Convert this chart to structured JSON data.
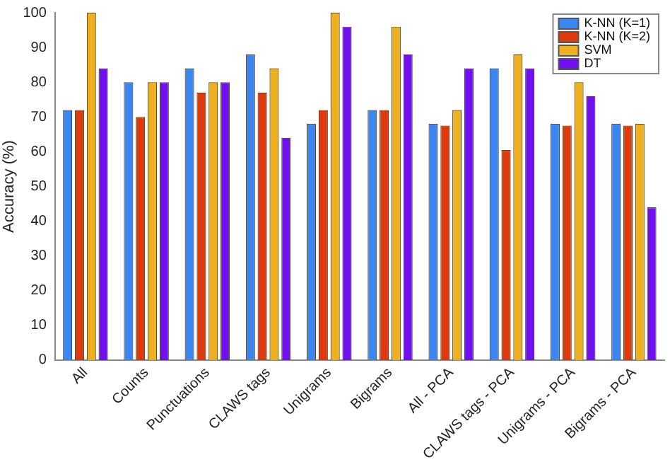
{
  "chart_data": {
    "type": "bar",
    "ylabel": "Accuracy (%)",
    "categories": [
      "All",
      "Counts",
      "Punctuations",
      "CLAWS tags",
      "Unigrams",
      "Bigrams",
      "All - PCA",
      "CLAWS tags - PCA",
      "Unigrams - PCA",
      "Bigrams - PCA"
    ],
    "series": [
      {
        "name": "K-NN (K=1)",
        "color": "#3b86f0",
        "values": [
          72,
          80,
          84,
          88,
          68,
          72,
          68,
          84,
          68,
          68
        ]
      },
      {
        "name": "K-NN (K=2)",
        "color": "#dd3a10",
        "values": [
          72,
          70,
          77,
          77,
          72,
          72,
          67.5,
          60.5,
          67.5,
          67.5
        ]
      },
      {
        "name": "SVM",
        "color": "#eeb020",
        "values": [
          100,
          80,
          80,
          84,
          100,
          96,
          72,
          88,
          80,
          68
        ]
      },
      {
        "name": "DT",
        "color": "#7010f0",
        "values": [
          84,
          80,
          80,
          64,
          96,
          88,
          84,
          84,
          76,
          44
        ]
      }
    ],
    "ylim": [
      0,
      100
    ],
    "yticks": [
      0,
      10,
      20,
      30,
      40,
      50,
      60,
      70,
      80,
      90,
      100
    ],
    "grid": false,
    "legend": "top right"
  }
}
